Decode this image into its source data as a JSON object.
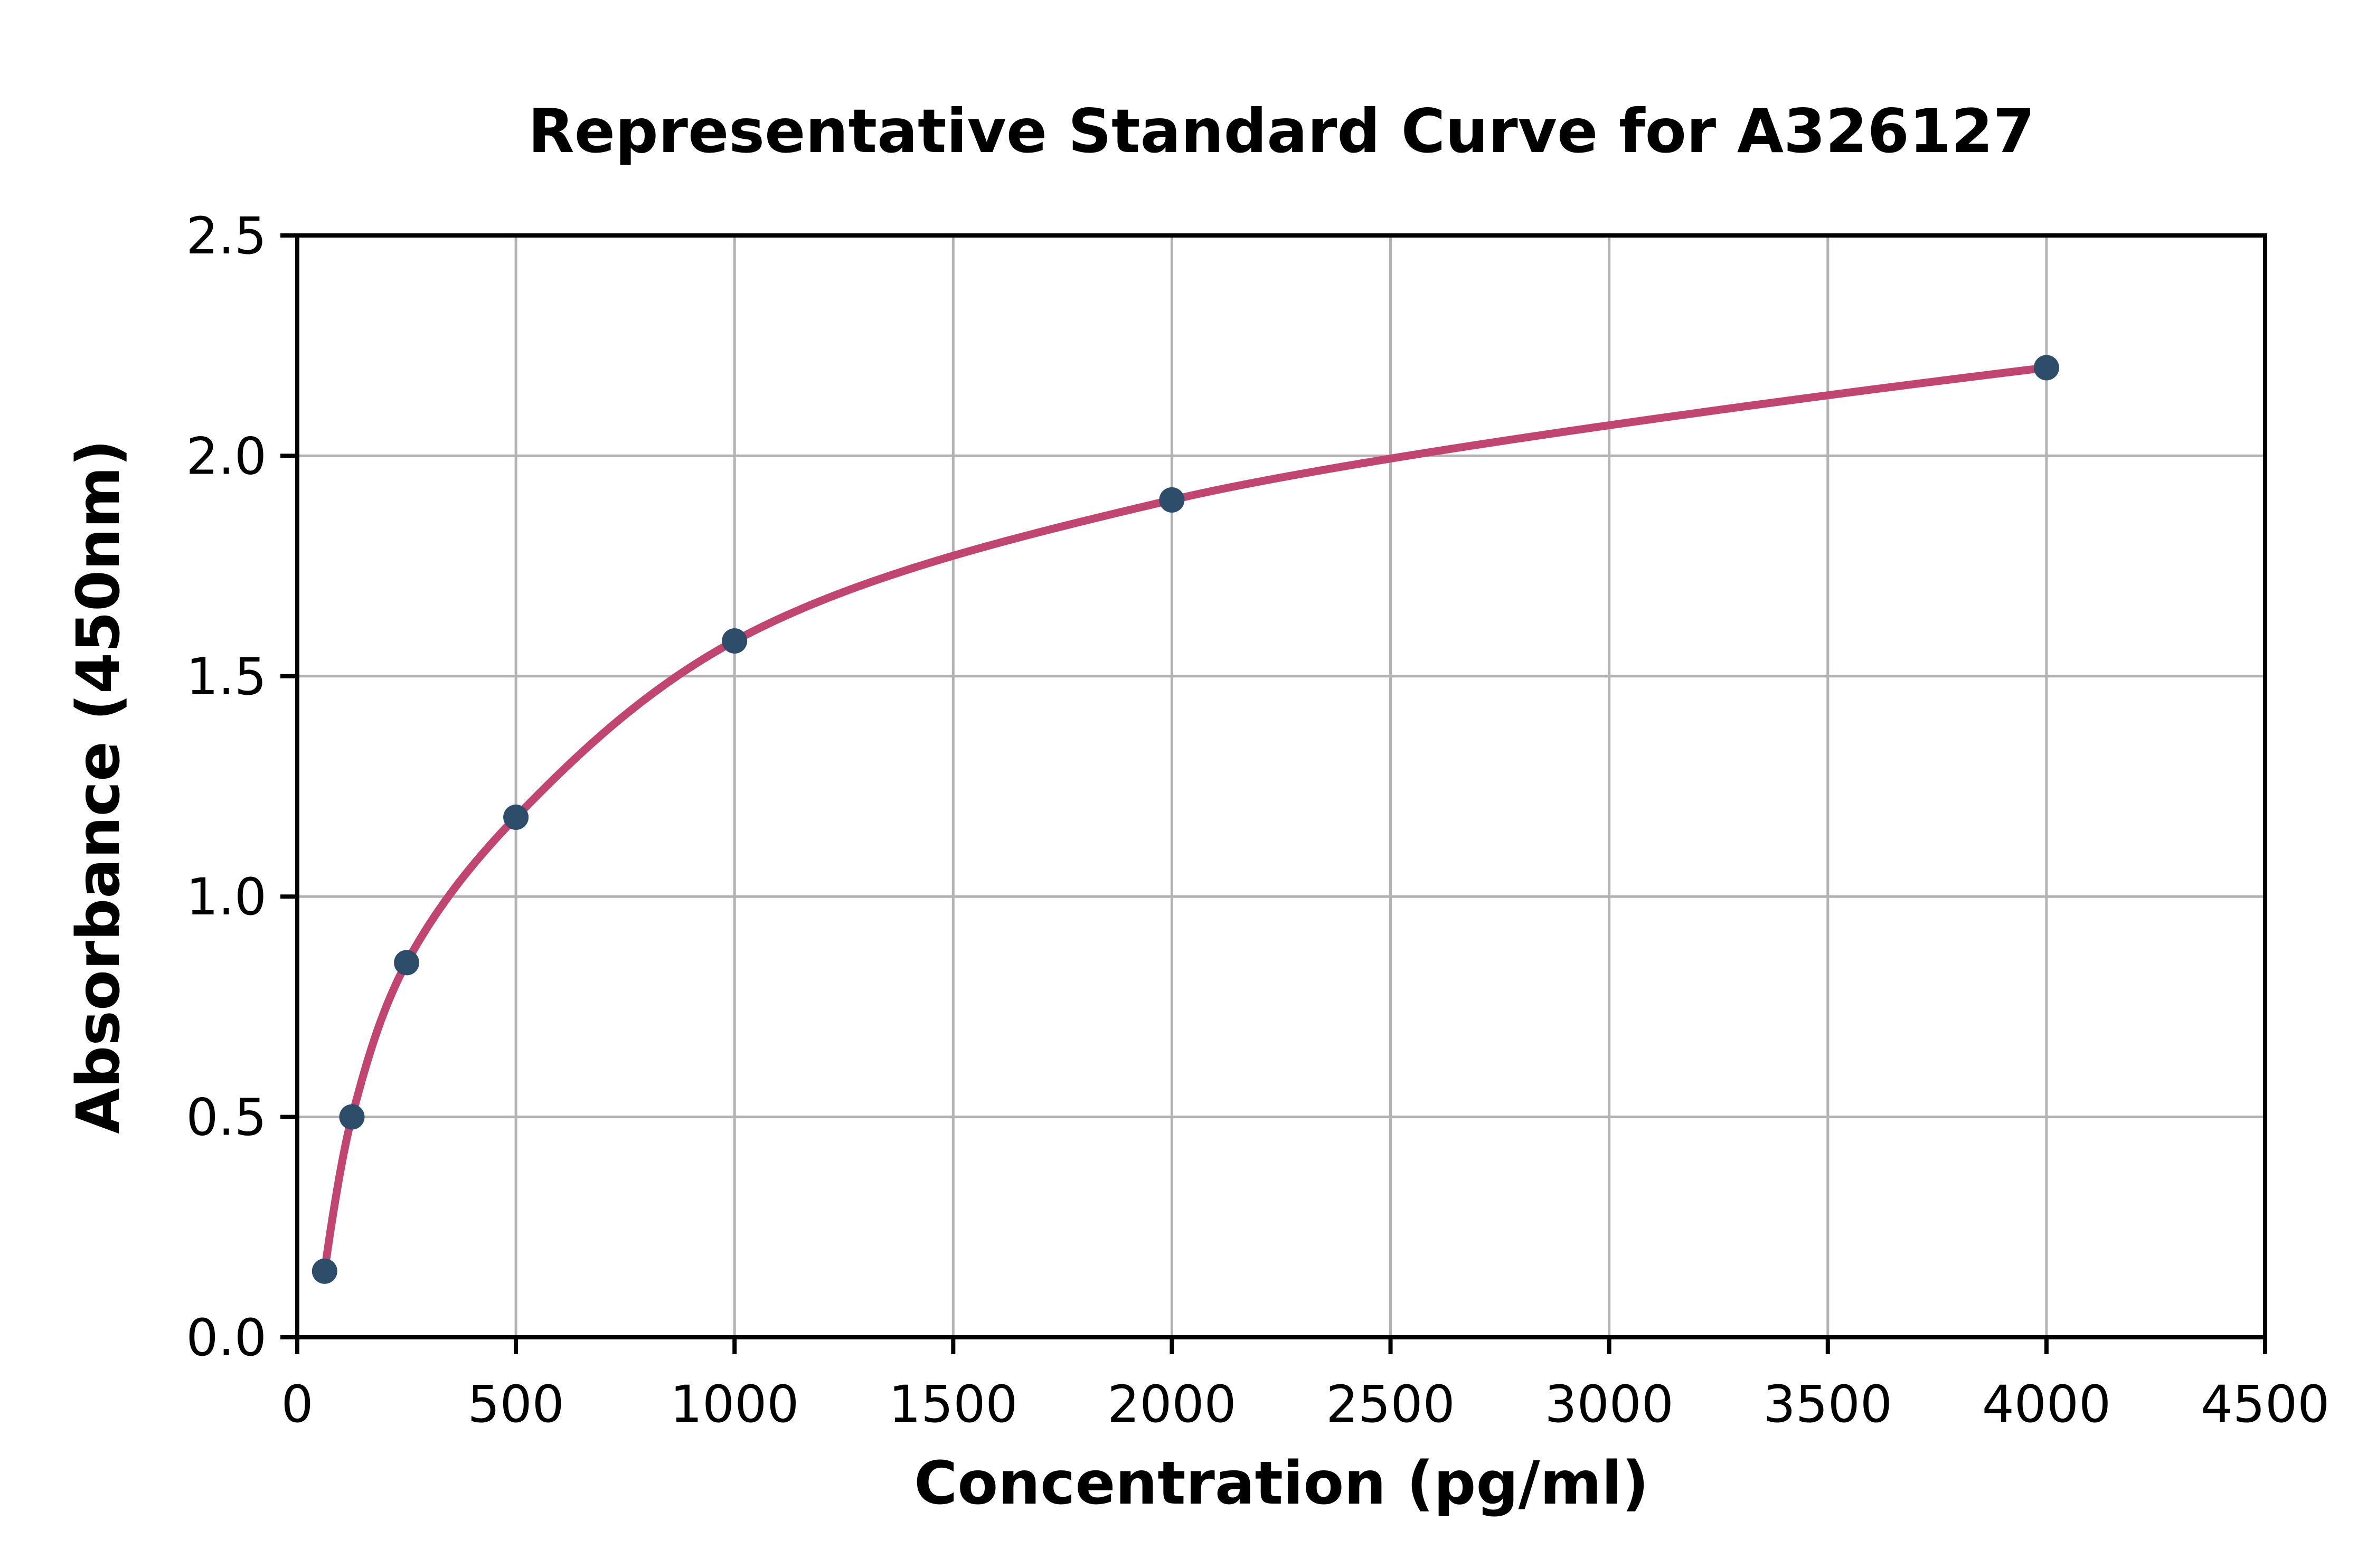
{
  "chart_data": {
    "type": "line",
    "title": "Representative Standard Curve for A326127",
    "xlabel": "Concentration (pg/ml)",
    "ylabel": "Absorbance (450nm)",
    "x": [
      62.5,
      125,
      250,
      500,
      1000,
      2000,
      4000
    ],
    "y": [
      0.15,
      0.5,
      0.85,
      1.18,
      1.58,
      1.9,
      2.2
    ],
    "xlim": [
      0,
      4500
    ],
    "ylim": [
      0,
      2.5
    ],
    "x_ticks": [
      0,
      500,
      1000,
      1500,
      2000,
      2500,
      3000,
      3500,
      4000,
      4500
    ],
    "x_tick_labels": [
      "0",
      "500",
      "1000",
      "1500",
      "2000",
      "2500",
      "3000",
      "3500",
      "4000",
      "4500"
    ],
    "y_ticks": [
      0.0,
      0.5,
      1.0,
      1.5,
      2.0,
      2.5
    ],
    "y_tick_labels": [
      "0.0",
      "0.5",
      "1.0",
      "1.5",
      "2.0",
      "2.5"
    ],
    "grid": true,
    "legend": "none",
    "marker": "circle",
    "colors": {
      "line": "#c04571",
      "marker": "#2e4d6b",
      "grid": "#b3b3b3",
      "axis": "#000000",
      "text": "#000000",
      "background": "#ffffff"
    }
  }
}
